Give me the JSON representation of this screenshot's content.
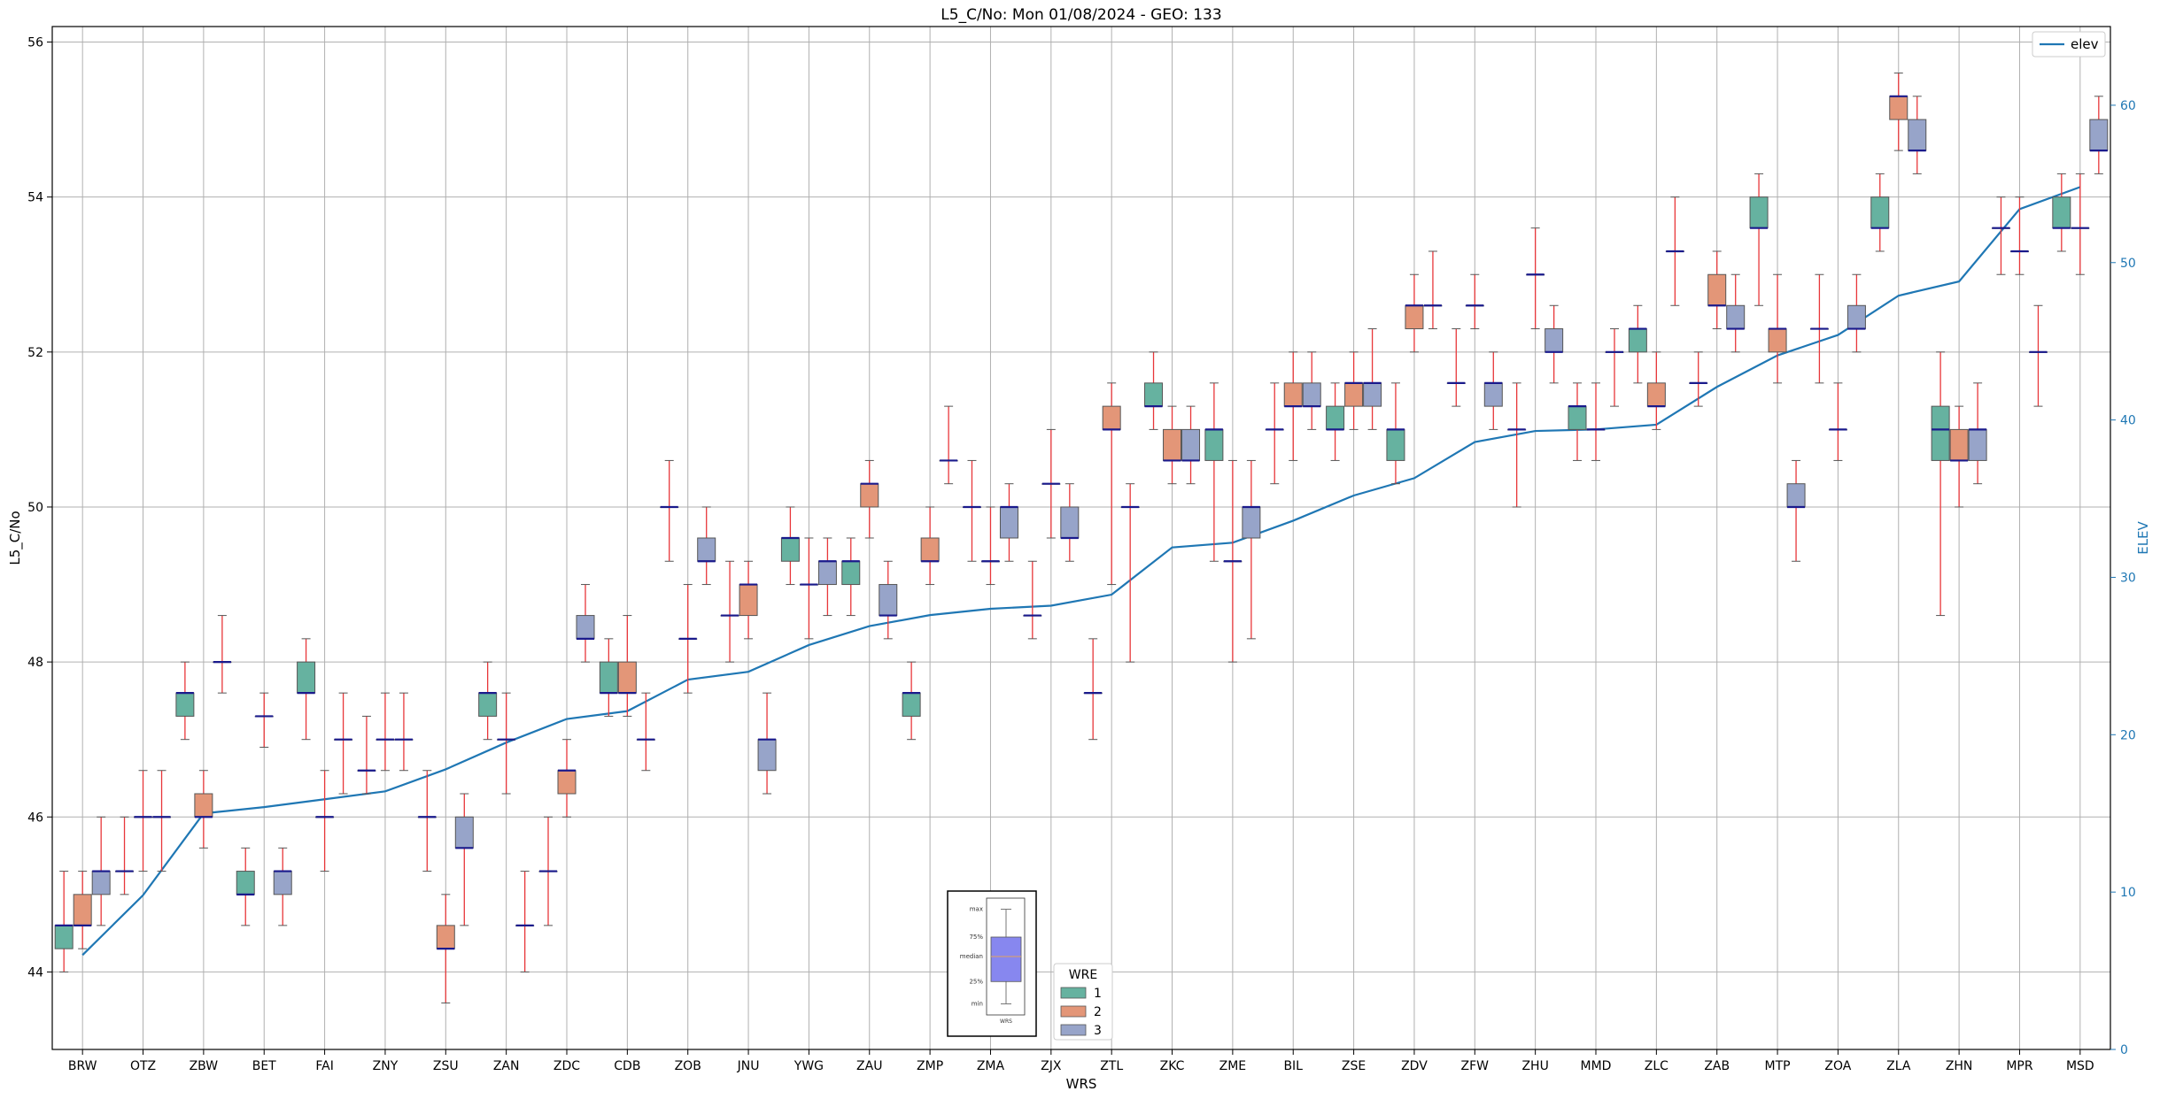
{
  "chart_data": {
    "type": "box",
    "title": "L5_C/No: Mon 01/08/2024 - GEO: 133",
    "xlabel": "WRS",
    "ylabel": "L5_C/No",
    "y2label": "ELEV",
    "ylim": [
      43,
      56.2
    ],
    "y2lim": [
      0,
      65
    ],
    "yticks": [
      44,
      46,
      48,
      50,
      52,
      54,
      56
    ],
    "y2ticks": [
      0,
      10,
      20,
      30,
      40,
      50,
      60
    ],
    "grid": true,
    "legend_placement": "lower-center",
    "legend_title": "WRE",
    "categories": [
      "BRW",
      "OTZ",
      "ZBW",
      "BET",
      "FAI",
      "ZNY",
      "ZSU",
      "ZAN",
      "ZDC",
      "CDB",
      "ZOB",
      "JNU",
      "YWG",
      "ZAU",
      "ZMP",
      "ZMA",
      "ZJX",
      "ZTL",
      "ZKC",
      "ZME",
      "BIL",
      "ZSE",
      "ZDV",
      "ZFW",
      "ZHU",
      "MMD",
      "ZLC",
      "ZAB",
      "MTP",
      "ZOA",
      "ZLA",
      "ZHN",
      "MPR",
      "MSD"
    ],
    "series": [
      {
        "name": "1",
        "color": "#66b2a0",
        "boxes": [
          [
            44.0,
            44.3,
            44.6,
            44.6,
            45.3
          ],
          [
            45.0,
            45.3,
            45.3,
            45.3,
            46.0
          ],
          [
            47.0,
            47.3,
            47.6,
            47.6,
            48.0
          ],
          [
            44.6,
            45.0,
            45.0,
            45.3,
            45.6
          ],
          [
            47.0,
            47.6,
            47.6,
            48.0,
            48.3
          ],
          [
            46.3,
            46.6,
            46.6,
            46.6,
            47.3
          ],
          [
            45.3,
            46.0,
            46.0,
            46.0,
            46.6
          ],
          [
            47.0,
            47.3,
            47.6,
            47.6,
            48.0
          ],
          [
            44.6,
            45.3,
            45.3,
            45.3,
            46.0
          ],
          [
            47.3,
            47.6,
            47.6,
            48.0,
            48.3
          ],
          [
            49.3,
            50.0,
            50.0,
            50.0,
            50.6
          ],
          [
            48.0,
            48.6,
            48.6,
            48.6,
            49.3
          ],
          [
            49.0,
            49.3,
            49.6,
            49.6,
            50.0
          ],
          [
            48.6,
            49.0,
            49.3,
            49.3,
            49.6
          ],
          [
            47.0,
            47.3,
            47.6,
            47.6,
            48.0
          ],
          [
            49.3,
            50.0,
            50.0,
            50.0,
            50.6
          ],
          [
            48.3,
            48.6,
            48.6,
            48.6,
            49.3
          ],
          [
            47.0,
            47.6,
            47.6,
            47.6,
            48.3
          ],
          [
            51.0,
            51.3,
            51.3,
            51.6,
            52.0
          ],
          [
            49.3,
            50.6,
            51.0,
            51.0,
            51.6
          ],
          [
            50.3,
            51.0,
            51.0,
            51.0,
            51.6
          ],
          [
            50.6,
            51.0,
            51.0,
            51.3,
            51.6
          ],
          [
            50.3,
            50.6,
            51.0,
            51.0,
            51.6
          ],
          [
            51.3,
            51.6,
            51.6,
            51.6,
            52.3
          ],
          [
            50.0,
            51.0,
            51.0,
            51.0,
            51.6
          ],
          [
            50.6,
            51.0,
            51.3,
            51.3,
            51.6
          ],
          [
            51.6,
            52.0,
            52.3,
            52.3,
            52.6
          ],
          [
            51.3,
            51.6,
            51.6,
            51.6,
            52.0
          ],
          [
            52.6,
            53.6,
            53.6,
            54.0,
            54.3
          ],
          [
            51.6,
            52.3,
            52.3,
            52.3,
            53.0
          ],
          [
            53.3,
            53.6,
            53.6,
            54.0,
            54.3
          ],
          [
            48.6,
            50.6,
            51.0,
            51.3,
            52.0
          ],
          [
            53.0,
            53.6,
            53.6,
            53.6,
            54.0
          ],
          [
            53.3,
            53.6,
            53.6,
            54.0,
            54.3
          ]
        ]
      },
      {
        "name": "2",
        "color": "#e39678",
        "boxes": [
          [
            44.3,
            44.6,
            44.6,
            45.0,
            45.3
          ],
          [
            45.3,
            46.0,
            46.0,
            46.0,
            46.6
          ],
          [
            45.6,
            46.0,
            46.0,
            46.3,
            46.6
          ],
          [
            46.9,
            47.3,
            47.3,
            47.3,
            47.6
          ],
          [
            45.3,
            46.0,
            46.0,
            46.0,
            46.6
          ],
          [
            46.6,
            47.0,
            47.0,
            47.0,
            47.6
          ],
          [
            43.6,
            44.3,
            44.3,
            44.6,
            45.0
          ],
          [
            46.3,
            47.0,
            47.0,
            47.0,
            47.6
          ],
          [
            46.0,
            46.3,
            46.6,
            46.6,
            47.0
          ],
          [
            47.3,
            47.6,
            47.6,
            48.0,
            48.6
          ],
          [
            47.6,
            48.3,
            48.3,
            48.3,
            49.0
          ],
          [
            48.3,
            48.6,
            49.0,
            49.0,
            49.3
          ],
          [
            48.3,
            49.0,
            49.0,
            49.0,
            49.6
          ],
          [
            49.6,
            50.0,
            50.3,
            50.3,
            50.6
          ],
          [
            49.0,
            49.3,
            49.3,
            49.6,
            50.0
          ],
          [
            49.0,
            49.3,
            49.3,
            49.3,
            50.0
          ],
          [
            49.6,
            50.3,
            50.3,
            50.3,
            51.0
          ],
          [
            49.0,
            51.0,
            51.0,
            51.3,
            51.6
          ],
          [
            50.3,
            50.6,
            50.6,
            51.0,
            51.3
          ],
          [
            48.0,
            49.3,
            49.3,
            49.3,
            50.6
          ],
          [
            50.6,
            51.3,
            51.3,
            51.6,
            52.0
          ],
          [
            51.0,
            51.3,
            51.6,
            51.6,
            52.0
          ],
          [
            52.0,
            52.3,
            52.6,
            52.6,
            53.0
          ],
          [
            52.3,
            52.6,
            52.6,
            52.6,
            53.0
          ],
          [
            52.3,
            53.0,
            53.0,
            53.0,
            53.6
          ],
          [
            50.6,
            51.0,
            51.0,
            51.0,
            51.6
          ],
          [
            51.0,
            51.3,
            51.3,
            51.6,
            52.0
          ],
          [
            52.3,
            52.6,
            52.6,
            53.0,
            53.3
          ],
          [
            51.6,
            52.0,
            52.3,
            52.3,
            53.0
          ],
          [
            50.6,
            51.0,
            51.0,
            51.0,
            51.6
          ],
          [
            54.6,
            55.0,
            55.3,
            55.3,
            55.6
          ],
          [
            50.0,
            50.6,
            50.6,
            51.0,
            51.3
          ],
          [
            53.0,
            53.3,
            53.3,
            53.3,
            54.0
          ],
          [
            53.0,
            53.6,
            53.6,
            53.6,
            54.3
          ]
        ]
      },
      {
        "name": "3",
        "color": "#97a4c9",
        "boxes": [
          [
            44.6,
            45.0,
            45.3,
            45.3,
            46.0
          ],
          [
            45.3,
            46.0,
            46.0,
            46.0,
            46.6
          ],
          [
            47.6,
            48.0,
            48.0,
            48.0,
            48.6
          ],
          [
            44.6,
            45.0,
            45.3,
            45.3,
            45.6
          ],
          [
            46.3,
            47.0,
            47.0,
            47.0,
            47.6
          ],
          [
            46.6,
            47.0,
            47.0,
            47.0,
            47.6
          ],
          [
            44.6,
            45.6,
            45.6,
            46.0,
            46.3
          ],
          [
            44.0,
            44.6,
            44.6,
            44.6,
            45.3
          ],
          [
            48.0,
            48.3,
            48.3,
            48.6,
            49.0
          ],
          [
            46.6,
            47.0,
            47.0,
            47.0,
            47.6
          ],
          [
            49.0,
            49.3,
            49.3,
            49.6,
            50.0
          ],
          [
            46.3,
            46.6,
            47.0,
            47.0,
            47.6
          ],
          [
            48.6,
            49.0,
            49.3,
            49.3,
            49.6
          ],
          [
            48.3,
            48.6,
            48.6,
            49.0,
            49.3
          ],
          [
            50.3,
            50.6,
            50.6,
            50.6,
            51.3
          ],
          [
            49.3,
            49.6,
            50.0,
            50.0,
            50.3
          ],
          [
            49.3,
            49.6,
            49.6,
            50.0,
            50.3
          ],
          [
            48.0,
            50.0,
            50.0,
            50.0,
            50.3
          ],
          [
            50.3,
            50.6,
            50.6,
            51.0,
            51.3
          ],
          [
            48.3,
            49.6,
            50.0,
            50.0,
            50.6
          ],
          [
            51.0,
            51.3,
            51.3,
            51.6,
            52.0
          ],
          [
            51.0,
            51.3,
            51.6,
            51.6,
            52.3
          ],
          [
            52.3,
            52.6,
            52.6,
            52.6,
            53.3
          ],
          [
            51.0,
            51.3,
            51.6,
            51.6,
            52.0
          ],
          [
            51.6,
            52.0,
            52.0,
            52.3,
            52.6
          ],
          [
            51.3,
            52.0,
            52.0,
            52.0,
            52.3
          ],
          [
            52.6,
            53.3,
            53.3,
            53.3,
            54.0
          ],
          [
            52.0,
            52.3,
            52.3,
            52.6,
            53.0
          ],
          [
            49.3,
            50.0,
            50.0,
            50.3,
            50.6
          ],
          [
            52.0,
            52.3,
            52.3,
            52.6,
            53.0
          ],
          [
            54.3,
            54.6,
            54.6,
            55.0,
            55.3
          ],
          [
            50.3,
            50.6,
            51.0,
            51.0,
            51.6
          ],
          [
            51.3,
            52.0,
            52.0,
            52.0,
            52.6
          ],
          [
            54.3,
            54.6,
            54.6,
            55.0,
            55.3
          ]
        ]
      }
    ],
    "elev": {
      "name": "elev",
      "color": "#1f77b4",
      "values": [
        6.0,
        9.8,
        15.0,
        15.4,
        15.9,
        16.4,
        17.8,
        19.5,
        21.0,
        21.5,
        23.5,
        24.0,
        25.7,
        26.9,
        27.6,
        28.0,
        28.2,
        28.9,
        31.9,
        32.2,
        33.6,
        35.2,
        36.3,
        38.6,
        39.3,
        39.4,
        39.7,
        42.1,
        44.1,
        45.4,
        47.9,
        48.8,
        53.4,
        54.8
      ]
    },
    "legend_entries": [
      "1",
      "2",
      "3"
    ],
    "key_inset": {
      "labels": [
        "max",
        "75%",
        "median",
        "25%",
        "min"
      ],
      "xlabel": "WRS",
      "values": [
        58,
        53,
        49.5,
        45,
        41
      ]
    }
  }
}
